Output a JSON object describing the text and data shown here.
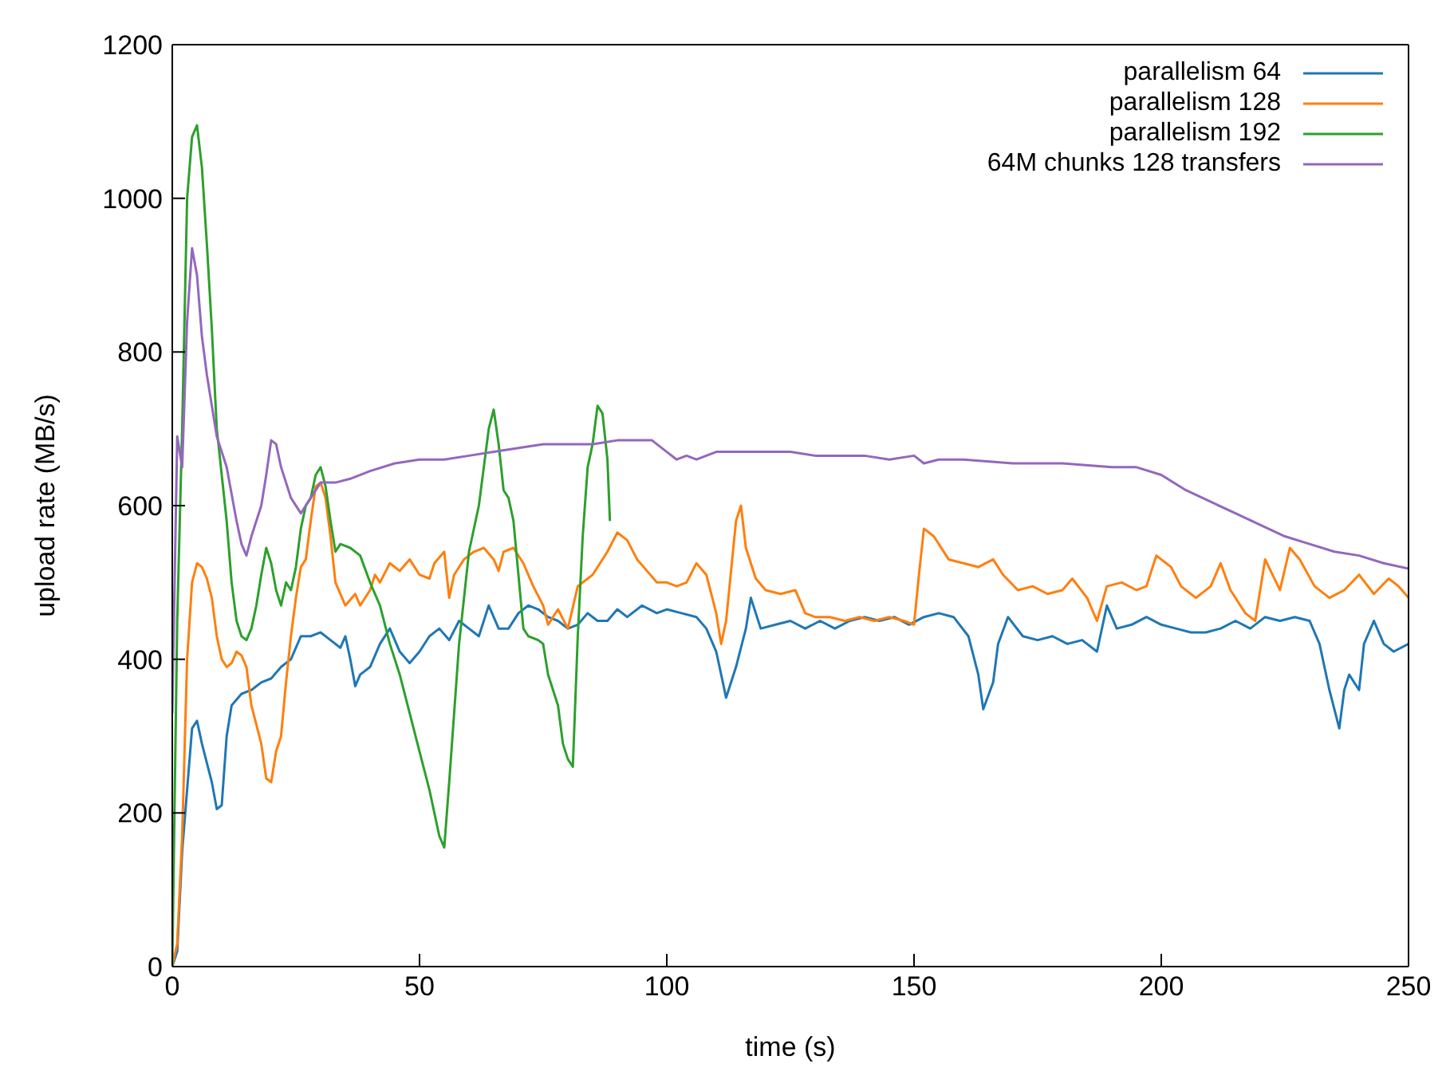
{
  "chart_data": {
    "type": "line",
    "xlabel": "time (s)",
    "ylabel": "upload rate (MB/s)",
    "xlim": [
      0,
      250
    ],
    "xticks": [
      0,
      50,
      100,
      150,
      200,
      250
    ],
    "ylim": [
      0,
      1200
    ],
    "yticks": [
      0,
      200,
      400,
      600,
      800,
      1000,
      1200
    ],
    "grid": false,
    "legend": "top right",
    "marker": "none",
    "line_style": "solid",
    "series": [
      {
        "name": "parallelism 64",
        "color": "#1f77b4",
        "x": [
          0,
          1,
          2,
          3,
          4,
          5,
          6,
          8,
          9,
          10,
          11,
          12,
          14,
          16,
          18,
          20,
          22,
          24,
          26,
          28,
          30,
          32,
          34,
          35,
          36,
          37,
          38,
          40,
          42,
          44,
          46,
          48,
          50,
          52,
          54,
          56,
          58,
          60,
          62,
          64,
          66,
          68,
          70,
          72,
          74,
          76,
          78,
          80,
          82,
          84,
          86,
          88,
          90,
          92,
          95,
          98,
          100,
          103,
          106,
          108,
          110,
          112,
          114,
          116,
          117,
          119,
          122,
          125,
          128,
          131,
          134,
          137,
          140,
          143,
          146,
          149,
          152,
          155,
          158,
          161,
          163,
          164,
          166,
          167,
          169,
          172,
          175,
          178,
          181,
          184,
          187,
          189,
          191,
          194,
          197,
          200,
          203,
          206,
          209,
          212,
          215,
          218,
          221,
          224,
          227,
          230,
          232,
          234,
          236,
          237,
          238,
          240,
          241,
          243,
          245,
          247,
          250
        ],
        "values": [
          0,
          20,
          150,
          230,
          310,
          320,
          290,
          240,
          205,
          210,
          300,
          340,
          355,
          360,
          370,
          375,
          390,
          400,
          430,
          430,
          435,
          425,
          415,
          430,
          400,
          365,
          380,
          390,
          420,
          440,
          410,
          395,
          410,
          430,
          440,
          425,
          450,
          440,
          430,
          470,
          440,
          440,
          460,
          470,
          465,
          455,
          450,
          440,
          445,
          460,
          450,
          450,
          465,
          455,
          470,
          460,
          465,
          460,
          455,
          440,
          410,
          350,
          390,
          440,
          480,
          440,
          445,
          450,
          440,
          450,
          440,
          450,
          455,
          450,
          455,
          445,
          455,
          460,
          455,
          430,
          380,
          335,
          370,
          420,
          455,
          430,
          425,
          430,
          420,
          425,
          410,
          470,
          440,
          445,
          455,
          445,
          440,
          435,
          435,
          440,
          450,
          440,
          455,
          450,
          455,
          450,
          420,
          360,
          310,
          360,
          380,
          360,
          420,
          450,
          420,
          410,
          420
        ]
      },
      {
        "name": "parallelism 128",
        "color": "#ff7f0e",
        "x": [
          0,
          1,
          2,
          3,
          4,
          5,
          6,
          7,
          8,
          9,
          10,
          11,
          12,
          13,
          14,
          15,
          16,
          18,
          19,
          20,
          21,
          22,
          23,
          24,
          25,
          26,
          27,
          28,
          29,
          30,
          31,
          32,
          33,
          35,
          37,
          38,
          40,
          41,
          42,
          44,
          46,
          48,
          50,
          52,
          53,
          55,
          56,
          57,
          59,
          61,
          63,
          65,
          66,
          67,
          69,
          71,
          73,
          75,
          76,
          78,
          80,
          82,
          85,
          88,
          90,
          92,
          94,
          96,
          98,
          100,
          102,
          104,
          106,
          108,
          110,
          111,
          112,
          114,
          115,
          116,
          118,
          120,
          123,
          126,
          128,
          130,
          133,
          136,
          139,
          142,
          145,
          148,
          150,
          151,
          152,
          154,
          157,
          160,
          163,
          166,
          168,
          171,
          174,
          177,
          180,
          182,
          185,
          187,
          189,
          192,
          195,
          197,
          199,
          202,
          204,
          207,
          210,
          212,
          214,
          217,
          219,
          221,
          224,
          226,
          228,
          231,
          234,
          237,
          240,
          243,
          246,
          248,
          250
        ],
        "values": [
          0,
          30,
          170,
          400,
          500,
          525,
          520,
          505,
          480,
          430,
          400,
          390,
          395,
          410,
          405,
          390,
          340,
          290,
          245,
          240,
          280,
          300,
          370,
          430,
          480,
          520,
          530,
          580,
          625,
          630,
          610,
          560,
          500,
          470,
          485,
          470,
          490,
          510,
          500,
          525,
          515,
          530,
          510,
          505,
          525,
          540,
          480,
          510,
          530,
          540,
          545,
          530,
          515,
          540,
          545,
          525,
          495,
          470,
          445,
          465,
          440,
          495,
          510,
          540,
          565,
          555,
          530,
          515,
          500,
          500,
          495,
          500,
          525,
          510,
          460,
          420,
          450,
          580,
          600,
          545,
          505,
          490,
          485,
          490,
          460,
          455,
          455,
          450,
          455,
          450,
          455,
          450,
          445,
          510,
          570,
          560,
          530,
          525,
          520,
          530,
          510,
          490,
          495,
          485,
          490,
          505,
          480,
          450,
          495,
          500,
          490,
          495,
          535,
          520,
          495,
          480,
          495,
          525,
          490,
          460,
          450,
          530,
          490,
          545,
          530,
          495,
          480,
          490,
          510,
          485,
          505,
          495,
          480
        ]
      },
      {
        "name": "parallelism 192",
        "color": "#2ca02c",
        "x": [
          0,
          1,
          2,
          3,
          4,
          5,
          6,
          7,
          8,
          9,
          10,
          11,
          12,
          13,
          14,
          15,
          16,
          17,
          18,
          19,
          20,
          21,
          22,
          23,
          24,
          25,
          26,
          27,
          28,
          29,
          30,
          31,
          32,
          33,
          34,
          36,
          38,
          40,
          42,
          44,
          46,
          48,
          50,
          52,
          54,
          55,
          56,
          57,
          58,
          59,
          60,
          62,
          63,
          64,
          65,
          66,
          67,
          68,
          69,
          70,
          71,
          72,
          74,
          75,
          76,
          78,
          79,
          80,
          81,
          82,
          83,
          84,
          85,
          86,
          87,
          88,
          88.5
        ],
        "values": [
          0,
          450,
          700,
          1000,
          1080,
          1095,
          1040,
          940,
          830,
          700,
          640,
          580,
          500,
          450,
          430,
          425,
          440,
          470,
          510,
          545,
          525,
          490,
          470,
          500,
          490,
          520,
          570,
          600,
          610,
          640,
          650,
          625,
          580,
          540,
          550,
          545,
          535,
          500,
          470,
          420,
          380,
          330,
          280,
          230,
          170,
          155,
          240,
          330,
          420,
          480,
          540,
          600,
          650,
          700,
          725,
          680,
          620,
          610,
          580,
          510,
          440,
          430,
          425,
          420,
          380,
          340,
          290,
          270,
          260,
          430,
          560,
          650,
          680,
          730,
          720,
          660,
          580
        ]
      },
      {
        "name": "64M chunks 128 transfers",
        "color": "#9467bd",
        "x": [
          0,
          1,
          2,
          3,
          4,
          5,
          6,
          7,
          8,
          9,
          10,
          11,
          13,
          14,
          15,
          16,
          17,
          18,
          19,
          20,
          21,
          22,
          24,
          26,
          27,
          28,
          30,
          33,
          36,
          40,
          45,
          50,
          55,
          60,
          65,
          70,
          75,
          80,
          85,
          90,
          95,
          97,
          100,
          102,
          104,
          106,
          110,
          115,
          120,
          125,
          130,
          135,
          140,
          145,
          150,
          152,
          155,
          160,
          170,
          180,
          190,
          195,
          200,
          205,
          210,
          215,
          220,
          225,
          230,
          235,
          240,
          245,
          250
        ],
        "values": [
          330,
          690,
          650,
          840,
          935,
          900,
          820,
          770,
          730,
          690,
          670,
          650,
          580,
          550,
          535,
          560,
          580,
          600,
          640,
          685,
          680,
          650,
          610,
          590,
          600,
          610,
          630,
          630,
          635,
          645,
          655,
          660,
          660,
          665,
          670,
          675,
          680,
          680,
          680,
          685,
          685,
          685,
          670,
          660,
          665,
          660,
          670,
          670,
          670,
          670,
          665,
          665,
          665,
          660,
          665,
          655,
          660,
          660,
          655,
          655,
          650,
          650,
          640,
          620,
          605,
          590,
          575,
          560,
          550,
          540,
          535,
          525,
          518
        ]
      }
    ]
  }
}
